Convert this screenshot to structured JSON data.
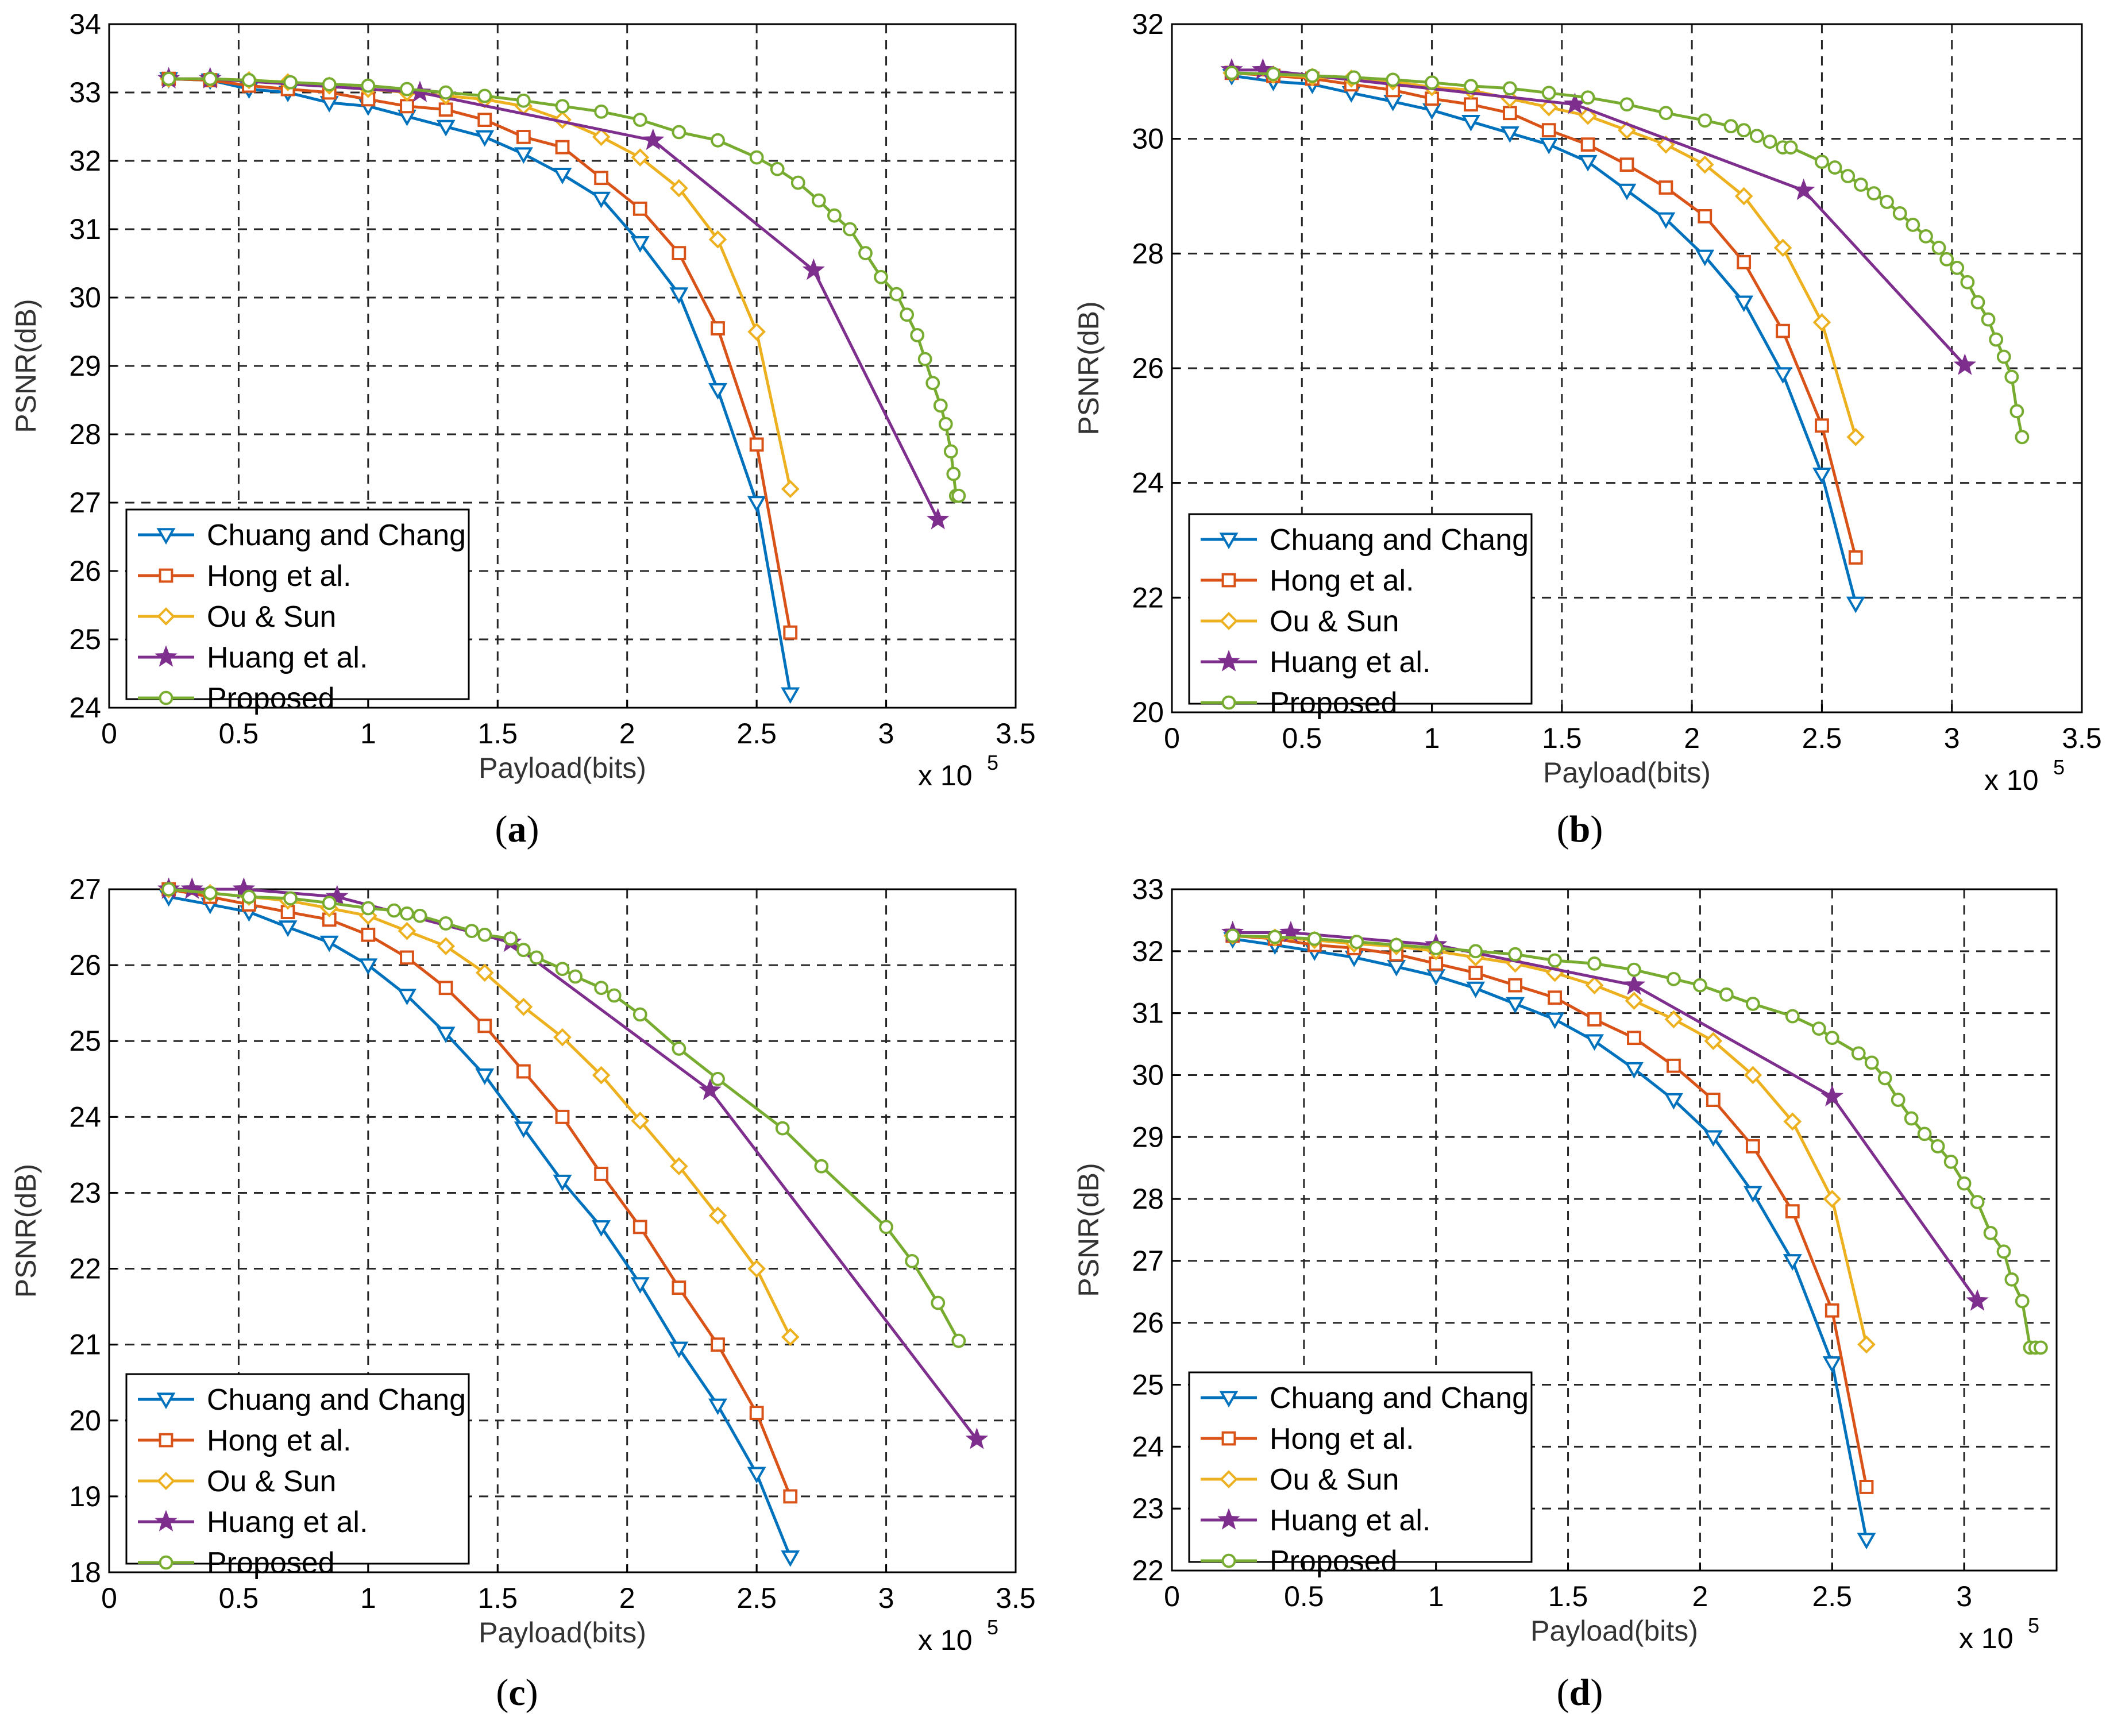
{
  "figure": {
    "captions": [
      "a",
      "b",
      "c",
      "d"
    ],
    "caption_format": "(X)"
  },
  "colors": {
    "chuang": "#0072BD",
    "hong": "#D95319",
    "ou": "#EDB120",
    "huang": "#7E2F8E",
    "proposed": "#77AC30"
  },
  "chart_data": [
    {
      "id": "a",
      "type": "line",
      "title": "",
      "xlabel": "Payload(bits)",
      "ylabel": "PSNR(dB)",
      "x_scale_label": "x 10",
      "x_scale_exp": "5",
      "xlim": [
        0,
        3.5
      ],
      "ylim": [
        24,
        34
      ],
      "xticks": [
        "0",
        "0.5",
        "1",
        "1.5",
        "2",
        "2.5",
        "3",
        "3.5"
      ],
      "yticks": [
        "24",
        "25",
        "26",
        "27",
        "28",
        "29",
        "30",
        "31",
        "32",
        "33",
        "34"
      ],
      "grid": true,
      "legend_position": "bottom-left",
      "series": [
        {
          "name": "Chuang and Chang",
          "marker": "triangle-down",
          "color_key": "chuang",
          "x": [
            0.23,
            0.39,
            0.54,
            0.69,
            0.85,
            1.0,
            1.15,
            1.3,
            1.45,
            1.6,
            1.75,
            1.9,
            2.05,
            2.2,
            2.35,
            2.5,
            2.63
          ],
          "y": [
            33.2,
            33.18,
            33.05,
            33.0,
            32.85,
            32.8,
            32.65,
            32.5,
            32.35,
            32.1,
            31.8,
            31.45,
            30.8,
            30.05,
            28.65,
            27.0,
            24.2
          ]
        },
        {
          "name": "Hong et al.",
          "marker": "square",
          "color_key": "hong",
          "x": [
            0.23,
            0.39,
            0.54,
            0.69,
            0.85,
            1.0,
            1.15,
            1.3,
            1.45,
            1.6,
            1.75,
            1.9,
            2.05,
            2.2,
            2.35,
            2.5,
            2.63
          ],
          "y": [
            33.2,
            33.18,
            33.1,
            33.05,
            33.0,
            32.9,
            32.8,
            32.75,
            32.6,
            32.35,
            32.2,
            31.75,
            31.3,
            30.65,
            29.55,
            27.85,
            25.1
          ]
        },
        {
          "name": "Ou & Sun",
          "marker": "diamond",
          "color_key": "ou",
          "x": [
            0.23,
            0.39,
            0.54,
            0.69,
            0.85,
            1.0,
            1.15,
            1.3,
            1.45,
            1.6,
            1.75,
            1.9,
            2.05,
            2.2,
            2.35,
            2.5,
            2.63
          ],
          "y": [
            33.2,
            33.2,
            33.18,
            33.15,
            33.1,
            33.05,
            33.0,
            32.95,
            32.9,
            32.8,
            32.6,
            32.35,
            32.05,
            31.6,
            30.85,
            29.5,
            27.2
          ]
        },
        {
          "name": "Huang et al.",
          "marker": "star",
          "color_key": "huang",
          "x": [
            0.23,
            0.39,
            1.2,
            2.1,
            2.72,
            3.2
          ],
          "y": [
            33.2,
            33.2,
            33.0,
            32.3,
            30.4,
            26.75
          ]
        },
        {
          "name": "Proposed",
          "marker": "circle",
          "color_key": "proposed",
          "x": [
            0.23,
            0.39,
            0.54,
            0.7,
            0.85,
            1.0,
            1.15,
            1.3,
            1.45,
            1.6,
            1.75,
            1.9,
            2.05,
            2.2,
            2.35,
            2.5,
            2.58,
            2.66,
            2.74,
            2.8,
            2.86,
            2.92,
            2.98,
            3.04,
            3.08,
            3.12,
            3.15,
            3.18,
            3.21,
            3.23,
            3.25,
            3.26,
            3.27,
            3.28
          ],
          "y": [
            33.2,
            33.2,
            33.18,
            33.15,
            33.12,
            33.1,
            33.05,
            33.0,
            32.95,
            32.88,
            32.8,
            32.72,
            32.6,
            32.42,
            32.3,
            32.05,
            31.88,
            31.68,
            31.42,
            31.2,
            31.0,
            30.65,
            30.3,
            30.05,
            29.75,
            29.45,
            29.1,
            28.75,
            28.42,
            28.15,
            27.75,
            27.42,
            27.1,
            27.1
          ]
        }
      ]
    },
    {
      "id": "b",
      "type": "line",
      "title": "",
      "xlabel": "Payload(bits)",
      "ylabel": "PSNR(dB)",
      "x_scale_label": "x 10",
      "x_scale_exp": "5",
      "xlim": [
        0,
        3.5
      ],
      "ylim": [
        20,
        32
      ],
      "xticks": [
        "0",
        "0.5",
        "1",
        "1.5",
        "2",
        "2.5",
        "3",
        "3.5"
      ],
      "yticks": [
        "20",
        "22",
        "24",
        "26",
        "28",
        "30",
        "32"
      ],
      "grid": true,
      "legend_position": "bottom-left",
      "series": [
        {
          "name": "Chuang and Chang",
          "marker": "triangle-down",
          "color_key": "chuang",
          "x": [
            0.23,
            0.39,
            0.54,
            0.69,
            0.85,
            1.0,
            1.15,
            1.3,
            1.45,
            1.6,
            1.75,
            1.9,
            2.05,
            2.2,
            2.35,
            2.5,
            2.63
          ],
          "y": [
            31.1,
            31.0,
            30.95,
            30.8,
            30.65,
            30.5,
            30.3,
            30.1,
            29.9,
            29.6,
            29.1,
            28.6,
            27.95,
            27.15,
            25.9,
            24.15,
            21.9
          ]
        },
        {
          "name": "Hong et al.",
          "marker": "square",
          "color_key": "hong",
          "x": [
            0.23,
            0.39,
            0.54,
            0.69,
            0.85,
            1.0,
            1.15,
            1.3,
            1.45,
            1.6,
            1.75,
            1.9,
            2.05,
            2.2,
            2.35,
            2.5,
            2.63
          ],
          "y": [
            31.15,
            31.1,
            31.05,
            30.95,
            30.85,
            30.7,
            30.6,
            30.45,
            30.15,
            29.9,
            29.55,
            29.15,
            28.65,
            27.85,
            26.65,
            25.0,
            22.7
          ]
        },
        {
          "name": "Ou & Sun",
          "marker": "diamond",
          "color_key": "ou",
          "x": [
            0.23,
            0.39,
            0.54,
            0.69,
            0.85,
            1.0,
            1.15,
            1.3,
            1.45,
            1.6,
            1.75,
            1.9,
            2.05,
            2.2,
            2.35,
            2.5,
            2.63
          ],
          "y": [
            31.15,
            31.12,
            31.08,
            31.05,
            31.0,
            30.9,
            30.85,
            30.7,
            30.55,
            30.4,
            30.15,
            29.9,
            29.55,
            29.0,
            28.1,
            26.8,
            24.8
          ]
        },
        {
          "name": "Huang et al.",
          "marker": "star",
          "color_key": "huang",
          "x": [
            0.23,
            0.35,
            1.55,
            2.43,
            3.05
          ],
          "y": [
            31.2,
            31.2,
            30.6,
            29.1,
            26.05
          ]
        },
        {
          "name": "Proposed",
          "marker": "circle",
          "color_key": "proposed",
          "x": [
            0.23,
            0.39,
            0.54,
            0.7,
            0.85,
            1.0,
            1.15,
            1.3,
            1.45,
            1.6,
            1.75,
            1.9,
            2.05,
            2.15,
            2.2,
            2.25,
            2.3,
            2.35,
            2.38,
            2.5,
            2.55,
            2.6,
            2.65,
            2.7,
            2.75,
            2.8,
            2.85,
            2.9,
            2.95,
            2.98,
            3.02,
            3.06,
            3.1,
            3.14,
            3.17,
            3.2,
            3.23,
            3.25,
            3.27
          ],
          "y": [
            31.15,
            31.13,
            31.1,
            31.07,
            31.03,
            30.98,
            30.92,
            30.88,
            30.8,
            30.72,
            30.6,
            30.45,
            30.32,
            30.22,
            30.15,
            30.05,
            29.95,
            29.85,
            29.85,
            29.6,
            29.5,
            29.35,
            29.2,
            29.05,
            28.9,
            28.7,
            28.5,
            28.3,
            28.1,
            27.9,
            27.75,
            27.5,
            27.15,
            26.85,
            26.5,
            26.2,
            25.85,
            25.25,
            24.8
          ]
        }
      ]
    },
    {
      "id": "c",
      "type": "line",
      "title": "",
      "xlabel": "Payload(bits)",
      "ylabel": "PSNR(dB)",
      "x_scale_label": "x 10",
      "x_scale_exp": "5",
      "xlim": [
        0,
        3.5
      ],
      "ylim": [
        18,
        27
      ],
      "xticks": [
        "0",
        "0.5",
        "1",
        "1.5",
        "2",
        "2.5",
        "3",
        "3.5"
      ],
      "yticks": [
        "18",
        "19",
        "20",
        "21",
        "22",
        "23",
        "24",
        "25",
        "26",
        "27"
      ],
      "grid": true,
      "legend_position": "bottom-left",
      "series": [
        {
          "name": "Chuang and Chang",
          "marker": "triangle-down",
          "color_key": "chuang",
          "x": [
            0.23,
            0.39,
            0.54,
            0.69,
            0.85,
            1.0,
            1.15,
            1.3,
            1.45,
            1.6,
            1.75,
            1.9,
            2.05,
            2.2,
            2.35,
            2.5,
            2.63
          ],
          "y": [
            26.9,
            26.8,
            26.7,
            26.5,
            26.3,
            26.0,
            25.6,
            25.1,
            24.55,
            23.85,
            23.15,
            22.55,
            21.8,
            20.95,
            20.2,
            19.3,
            18.2
          ]
        },
        {
          "name": "Hong et al.",
          "marker": "square",
          "color_key": "hong",
          "x": [
            0.23,
            0.39,
            0.54,
            0.69,
            0.85,
            1.0,
            1.15,
            1.3,
            1.45,
            1.6,
            1.75,
            1.9,
            2.05,
            2.2,
            2.35,
            2.5,
            2.63
          ],
          "y": [
            27.0,
            26.9,
            26.8,
            26.7,
            26.6,
            26.4,
            26.1,
            25.7,
            25.2,
            24.6,
            24.0,
            23.25,
            22.55,
            21.75,
            21.0,
            20.1,
            19.0
          ]
        },
        {
          "name": "Ou & Sun",
          "marker": "diamond",
          "color_key": "ou",
          "x": [
            0.23,
            0.39,
            0.54,
            0.69,
            0.85,
            1.0,
            1.15,
            1.3,
            1.45,
            1.6,
            1.75,
            1.9,
            2.05,
            2.2,
            2.35,
            2.5,
            2.63
          ],
          "y": [
            27.0,
            26.95,
            26.9,
            26.85,
            26.75,
            26.65,
            26.45,
            26.25,
            25.9,
            25.45,
            25.05,
            24.55,
            23.95,
            23.35,
            22.7,
            22.0,
            21.1
          ]
        },
        {
          "name": "Huang et al.",
          "marker": "star",
          "color_key": "huang",
          "x": [
            0.23,
            0.32,
            0.52,
            0.88,
            1.55,
            2.32,
            3.35
          ],
          "y": [
            27.0,
            27.0,
            27.0,
            26.9,
            26.3,
            24.35,
            19.75
          ]
        },
        {
          "name": "Proposed",
          "marker": "circle",
          "color_key": "proposed",
          "x": [
            0.23,
            0.39,
            0.54,
            0.7,
            0.85,
            1.0,
            1.1,
            1.15,
            1.2,
            1.3,
            1.4,
            1.45,
            1.55,
            1.6,
            1.65,
            1.75,
            1.8,
            1.9,
            1.95,
            2.05,
            2.2,
            2.35,
            2.6,
            2.75,
            3.0,
            3.1,
            3.2,
            3.28
          ],
          "y": [
            27.0,
            26.95,
            26.9,
            26.88,
            26.82,
            26.75,
            26.72,
            26.68,
            26.65,
            26.55,
            26.45,
            26.4,
            26.35,
            26.2,
            26.1,
            25.95,
            25.85,
            25.7,
            25.6,
            25.35,
            24.9,
            24.5,
            23.85,
            23.35,
            22.55,
            22.1,
            21.55,
            21.05
          ]
        }
      ]
    },
    {
      "id": "d",
      "type": "line",
      "title": "",
      "xlabel": "Payload(bits)",
      "ylabel": "PSNR(dB)",
      "x_scale_label": "x 10",
      "x_scale_exp": "5",
      "xlim": [
        0,
        3.35
      ],
      "ylim": [
        22,
        33
      ],
      "xticks": [
        "0",
        "0.5",
        "1",
        "1.5",
        "2",
        "2.5",
        "3"
      ],
      "yticks": [
        "22",
        "23",
        "24",
        "25",
        "26",
        "27",
        "28",
        "29",
        "30",
        "31",
        "32",
        "33"
      ],
      "grid": true,
      "legend_position": "bottom-left",
      "series": [
        {
          "name": "Chuang and Chang",
          "marker": "triangle-down",
          "color_key": "chuang",
          "x": [
            0.23,
            0.39,
            0.54,
            0.69,
            0.85,
            1.0,
            1.15,
            1.3,
            1.45,
            1.6,
            1.75,
            1.9,
            2.05,
            2.2,
            2.35,
            2.5,
            2.63
          ],
          "y": [
            32.2,
            32.1,
            32.0,
            31.9,
            31.75,
            31.6,
            31.4,
            31.15,
            30.9,
            30.55,
            30.1,
            29.6,
            29.0,
            28.1,
            27.0,
            25.35,
            22.5
          ]
        },
        {
          "name": "Hong et al.",
          "marker": "square",
          "color_key": "hong",
          "x": [
            0.23,
            0.39,
            0.54,
            0.69,
            0.85,
            1.0,
            1.15,
            1.3,
            1.45,
            1.6,
            1.75,
            1.9,
            2.05,
            2.2,
            2.35,
            2.5,
            2.63
          ],
          "y": [
            32.25,
            32.2,
            32.1,
            32.05,
            31.95,
            31.8,
            31.65,
            31.45,
            31.25,
            30.9,
            30.6,
            30.15,
            29.6,
            28.85,
            27.8,
            26.2,
            23.35
          ]
        },
        {
          "name": "Ou & Sun",
          "marker": "diamond",
          "color_key": "ou",
          "x": [
            0.23,
            0.39,
            0.54,
            0.69,
            0.85,
            1.0,
            1.15,
            1.3,
            1.45,
            1.6,
            1.75,
            1.9,
            2.05,
            2.2,
            2.35,
            2.5,
            2.63
          ],
          "y": [
            32.25,
            32.22,
            32.18,
            32.12,
            32.08,
            32.0,
            31.9,
            31.8,
            31.65,
            31.45,
            31.2,
            30.9,
            30.55,
            30.0,
            29.25,
            28.0,
            25.65
          ]
        },
        {
          "name": "Huang et al.",
          "marker": "star",
          "color_key": "huang",
          "x": [
            0.23,
            0.45,
            1.0,
            1.75,
            2.5,
            3.05
          ],
          "y": [
            32.3,
            32.3,
            32.1,
            31.45,
            29.65,
            26.35
          ]
        },
        {
          "name": "Proposed",
          "marker": "circle",
          "color_key": "proposed",
          "x": [
            0.23,
            0.39,
            0.54,
            0.7,
            0.85,
            1.0,
            1.15,
            1.3,
            1.45,
            1.6,
            1.75,
            1.9,
            2.0,
            2.1,
            2.2,
            2.35,
            2.45,
            2.5,
            2.6,
            2.65,
            2.7,
            2.75,
            2.8,
            2.85,
            2.9,
            2.95,
            3.0,
            3.05,
            3.1,
            3.15,
            3.18,
            3.22,
            3.25,
            3.27,
            3.29
          ],
          "y": [
            32.25,
            32.23,
            32.2,
            32.15,
            32.1,
            32.05,
            32.0,
            31.95,
            31.85,
            31.8,
            31.7,
            31.55,
            31.45,
            31.3,
            31.15,
            30.95,
            30.75,
            30.6,
            30.35,
            30.2,
            29.95,
            29.6,
            29.3,
            29.05,
            28.85,
            28.6,
            28.25,
            27.95,
            27.45,
            27.15,
            26.7,
            26.35,
            25.6,
            25.6,
            25.6
          ]
        }
      ]
    }
  ]
}
